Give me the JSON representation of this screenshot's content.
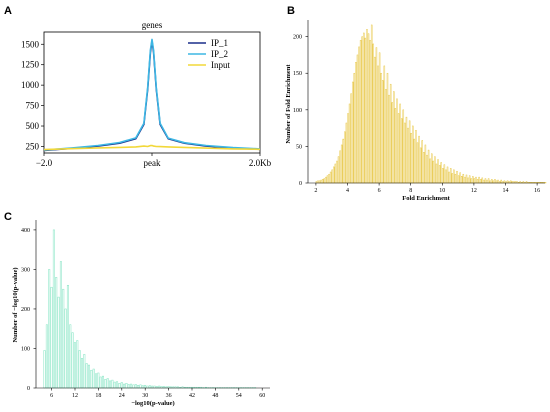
{
  "panel_labels": [
    "A",
    "B",
    "C"
  ],
  "chart_data": [
    {
      "panel": "A",
      "type": "line",
      "title": "genes",
      "x_tick_labels": [
        "−2.0",
        "peak",
        "2.0Kb"
      ],
      "x": [
        -2.0,
        -1.5,
        -1.0,
        -0.6,
        -0.3,
        -0.15,
        -0.08,
        -0.03,
        0.0,
        0.03,
        0.08,
        0.15,
        0.3,
        0.6,
        1.0,
        1.5,
        2.0
      ],
      "yticks": [
        250,
        500,
        750,
        1000,
        1250,
        1500
      ],
      "ylim": [
        170,
        1650
      ],
      "legend_position": "top-right",
      "series": [
        {
          "name": "IP_1",
          "color": "#1a2e8a",
          "values": [
            200,
            225,
            255,
            290,
            345,
            520,
            950,
            1400,
            1540,
            1400,
            950,
            520,
            345,
            290,
            255,
            230,
            215
          ]
        },
        {
          "name": "IP_2",
          "color": "#3db7e4",
          "values": [
            205,
            230,
            262,
            298,
            355,
            535,
            975,
            1430,
            1560,
            1425,
            970,
            535,
            352,
            296,
            262,
            236,
            220
          ]
        },
        {
          "name": "Input",
          "color": "#f2d83a",
          "values": [
            212,
            222,
            232,
            238,
            245,
            255,
            250,
            260,
            262,
            255,
            250,
            248,
            245,
            238,
            230,
            220,
            215
          ]
        }
      ]
    },
    {
      "panel": "B",
      "type": "bar",
      "xlabel": "Fold Enrichment",
      "ylabel": "Number of Fold Enrichment",
      "xticks": [
        2,
        4,
        6,
        8,
        10,
        12,
        14,
        16
      ],
      "yticks": [
        0,
        50,
        100,
        150,
        200
      ],
      "xlim": [
        1.5,
        16.5
      ],
      "ylim": [
        0,
        220
      ],
      "bar_color": "#e8c84a",
      "bin_start": 2.0,
      "bin_width": 0.1,
      "values": [
        2,
        3,
        3,
        4,
        5,
        6,
        8,
        10,
        12,
        15,
        18,
        22,
        26,
        30,
        36,
        44,
        52,
        60,
        70,
        82,
        95,
        108,
        122,
        138,
        150,
        165,
        175,
        186,
        195,
        200,
        205,
        198,
        210,
        204,
        195,
        216,
        190,
        172,
        185,
        160,
        178,
        150,
        140,
        160,
        128,
        150,
        120,
        135,
        110,
        125,
        102,
        115,
        95,
        108,
        88,
        100,
        82,
        90,
        75,
        85,
        68,
        78,
        60,
        72,
        55,
        64,
        48,
        58,
        42,
        52,
        38,
        45,
        33,
        40,
        30,
        36,
        26,
        32,
        24,
        28,
        20,
        25,
        18,
        22,
        15,
        20,
        13,
        18,
        12,
        16,
        10,
        14,
        9,
        12,
        8,
        11,
        7,
        10,
        6,
        9,
        6,
        8,
        5,
        8,
        5,
        7,
        4,
        6,
        4,
        6,
        3,
        5,
        3,
        5,
        3,
        4,
        2,
        4,
        2,
        3,
        2,
        3,
        2,
        3,
        2,
        2,
        2,
        2,
        1,
        2,
        1,
        2,
        1,
        2,
        1,
        1,
        1,
        1,
        1,
        1,
        1,
        1,
        1,
        1,
        1,
        1
      ]
    },
    {
      "panel": "C",
      "type": "bar",
      "xlabel": "−log10(p-value)",
      "ylabel": "Number of −log10(p-value)",
      "xticks": [
        6,
        12,
        18,
        24,
        30,
        36,
        42,
        48,
        54,
        60
      ],
      "yticks": [
        0,
        100,
        200,
        300,
        400
      ],
      "xlim": [
        2,
        62
      ],
      "ylim": [
        0,
        420
      ],
      "bar_color": "#7fe3c0",
      "bin_start": 4.0,
      "bin_width": 0.6,
      "values": [
        95,
        160,
        300,
        255,
        400,
        280,
        230,
        320,
        250,
        200,
        260,
        160,
        140,
        115,
        120,
        95,
        75,
        85,
        62,
        58,
        45,
        48,
        36,
        38,
        28,
        30,
        22,
        24,
        18,
        20,
        15,
        16,
        12,
        14,
        10,
        12,
        9,
        10,
        8,
        9,
        7,
        8,
        6,
        7,
        5,
        6,
        5,
        5,
        4,
        5,
        4,
        4,
        3,
        4,
        3,
        3,
        3,
        3,
        2,
        3,
        2,
        2,
        2,
        2,
        2,
        2,
        2,
        2,
        1,
        2,
        1,
        1,
        1,
        1,
        1,
        1,
        1,
        1,
        1,
        1,
        1,
        1,
        1,
        1,
        1,
        1,
        1,
        1,
        1,
        1,
        1
      ]
    }
  ]
}
